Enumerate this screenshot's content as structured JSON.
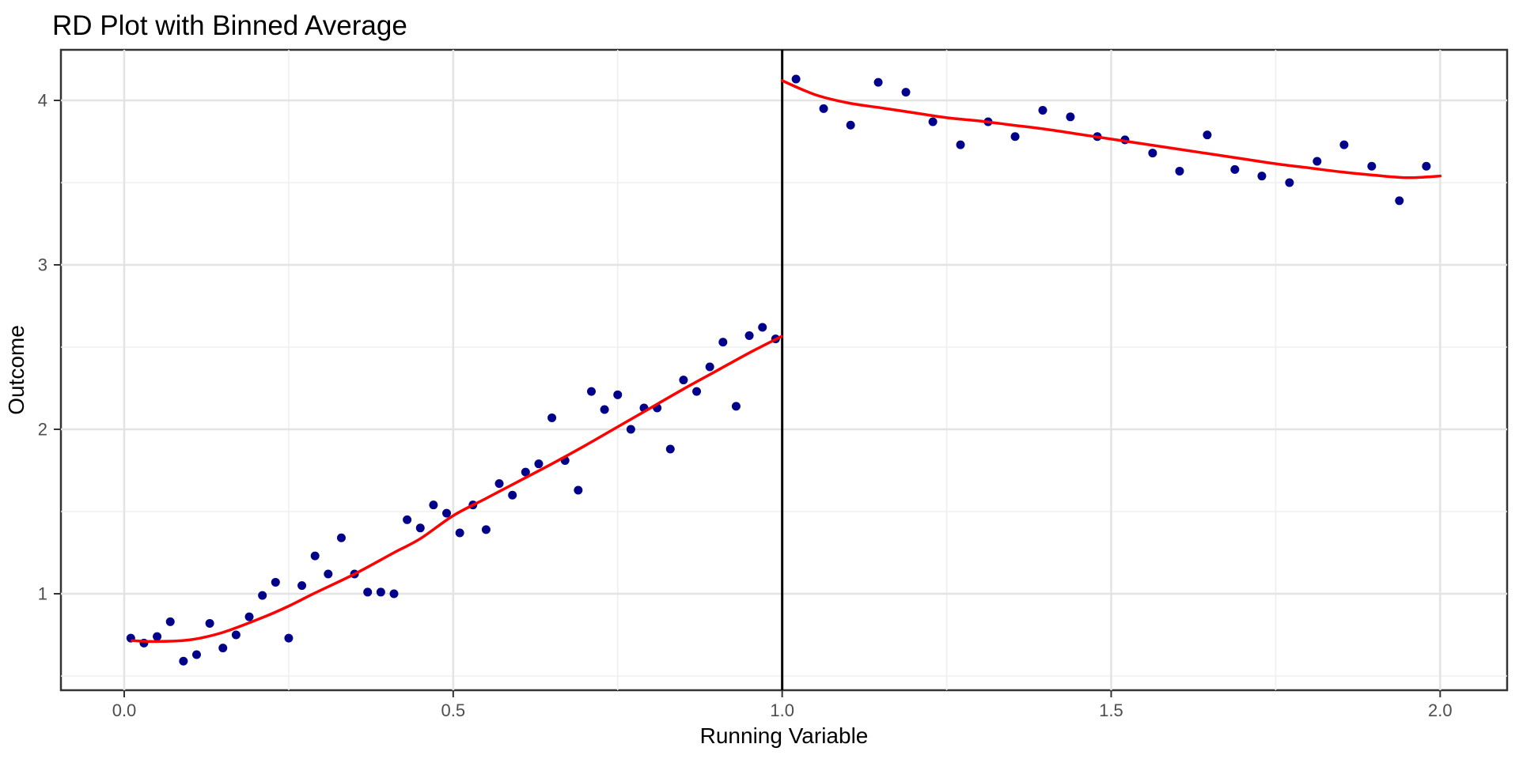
{
  "title": "RD Plot with Binned Average",
  "chart_data": {
    "type": "scatter",
    "title": "RD Plot with Binned Average",
    "xlabel": "Running Variable",
    "ylabel": "Outcome",
    "x_ticks": [
      0.0,
      0.5,
      1.0,
      1.5,
      2.0
    ],
    "x_tick_labels": [
      "0.0",
      "0.5",
      "1.0",
      "1.5",
      "2.0"
    ],
    "y_ticks": [
      1,
      2,
      3,
      4
    ],
    "y_tick_labels": [
      "1",
      "2",
      "3",
      "4"
    ],
    "x_minor_gridlines": [
      0.25,
      0.75,
      1.25,
      1.75
    ],
    "y_minor_gridlines": [
      0.5,
      1.5,
      2.5,
      3.5
    ],
    "xlim": [
      -0.0962,
      2.1018
    ],
    "ylim": [
      0.4135,
      4.3077
    ],
    "grid": true,
    "legend_position": "none",
    "cutoff_x": 1.0,
    "series": [
      {
        "name": "binned_average_left",
        "type": "scatter",
        "x": [
          0.01,
          0.03,
          0.05,
          0.07,
          0.09,
          0.11,
          0.13,
          0.15,
          0.17,
          0.19,
          0.21,
          0.23,
          0.25,
          0.27,
          0.29,
          0.31,
          0.33,
          0.35,
          0.37,
          0.39,
          0.41,
          0.43,
          0.45,
          0.47,
          0.49,
          0.51,
          0.53,
          0.55,
          0.57,
          0.59,
          0.61,
          0.63,
          0.65,
          0.67,
          0.69,
          0.71,
          0.73,
          0.75,
          0.77,
          0.79,
          0.81,
          0.83,
          0.85,
          0.87,
          0.89,
          0.91,
          0.93,
          0.95,
          0.97,
          0.99
        ],
        "y": [
          0.73,
          0.7,
          0.74,
          0.83,
          0.59,
          0.63,
          0.82,
          0.67,
          0.75,
          0.86,
          0.99,
          1.07,
          0.73,
          1.05,
          1.23,
          1.12,
          1.34,
          1.12,
          1.01,
          1.01,
          1.0,
          1.45,
          1.4,
          1.54,
          1.49,
          1.37,
          1.54,
          1.39,
          1.67,
          1.6,
          1.74,
          1.79,
          2.07,
          1.81,
          1.63,
          2.23,
          2.12,
          2.21,
          2.0,
          2.13,
          2.13,
          1.88,
          2.3,
          2.23,
          2.38,
          2.53,
          2.14,
          2.57,
          2.62,
          2.55
        ]
      },
      {
        "name": "binned_average_right",
        "type": "scatter",
        "x": [
          1.021,
          1.063,
          1.104,
          1.146,
          1.188,
          1.229,
          1.271,
          1.313,
          1.354,
          1.396,
          1.438,
          1.479,
          1.521,
          1.563,
          1.604,
          1.646,
          1.688,
          1.729,
          1.771,
          1.813,
          1.854,
          1.896,
          1.938,
          1.979
        ],
        "y": [
          4.13,
          3.95,
          3.85,
          4.11,
          4.05,
          3.87,
          3.73,
          3.87,
          3.78,
          3.94,
          3.9,
          3.78,
          3.76,
          3.68,
          3.57,
          3.79,
          3.58,
          3.54,
          3.5,
          3.63,
          3.73,
          3.6,
          3.39,
          3.6
        ]
      },
      {
        "name": "loess_fit_left",
        "type": "line",
        "points": [
          [
            0.012,
            0.715
          ],
          [
            0.05,
            0.71
          ],
          [
            0.1,
            0.72
          ],
          [
            0.15,
            0.765
          ],
          [
            0.21,
            0.855
          ],
          [
            0.25,
            0.925
          ],
          [
            0.29,
            1.005
          ],
          [
            0.35,
            1.12
          ],
          [
            0.41,
            1.25
          ],
          [
            0.45,
            1.335
          ],
          [
            0.5,
            1.475
          ],
          [
            0.55,
            1.58
          ],
          [
            0.6,
            1.685
          ],
          [
            0.65,
            1.79
          ],
          [
            0.7,
            1.9
          ],
          [
            0.75,
            2.015
          ],
          [
            0.8,
            2.13
          ],
          [
            0.85,
            2.245
          ],
          [
            0.9,
            2.355
          ],
          [
            0.95,
            2.465
          ],
          [
            0.999,
            2.565
          ]
        ]
      },
      {
        "name": "loess_fit_right",
        "type": "line",
        "points": [
          [
            1.0,
            4.12
          ],
          [
            1.05,
            4.035
          ],
          [
            1.1,
            3.985
          ],
          [
            1.15,
            3.955
          ],
          [
            1.2,
            3.925
          ],
          [
            1.25,
            3.895
          ],
          [
            1.3,
            3.875
          ],
          [
            1.35,
            3.85
          ],
          [
            1.4,
            3.825
          ],
          [
            1.45,
            3.795
          ],
          [
            1.5,
            3.765
          ],
          [
            1.55,
            3.735
          ],
          [
            1.6,
            3.705
          ],
          [
            1.65,
            3.675
          ],
          [
            1.7,
            3.645
          ],
          [
            1.75,
            3.615
          ],
          [
            1.8,
            3.59
          ],
          [
            1.85,
            3.565
          ],
          [
            1.9,
            3.545
          ],
          [
            1.95,
            3.53
          ],
          [
            2.0,
            3.54
          ]
        ]
      }
    ],
    "colors": {
      "point": "#00008B",
      "fit_line": "#FF0000",
      "cutoff_line": "#000000",
      "grid_major": "#e3e3e3",
      "grid_minor": "#efefef",
      "panel_border": "#333333",
      "tick_mark": "#333333",
      "tick_text": "#4d4d4d",
      "title_text": "#000000",
      "background": "#ffffff"
    },
    "point_radius": 5.5
  }
}
